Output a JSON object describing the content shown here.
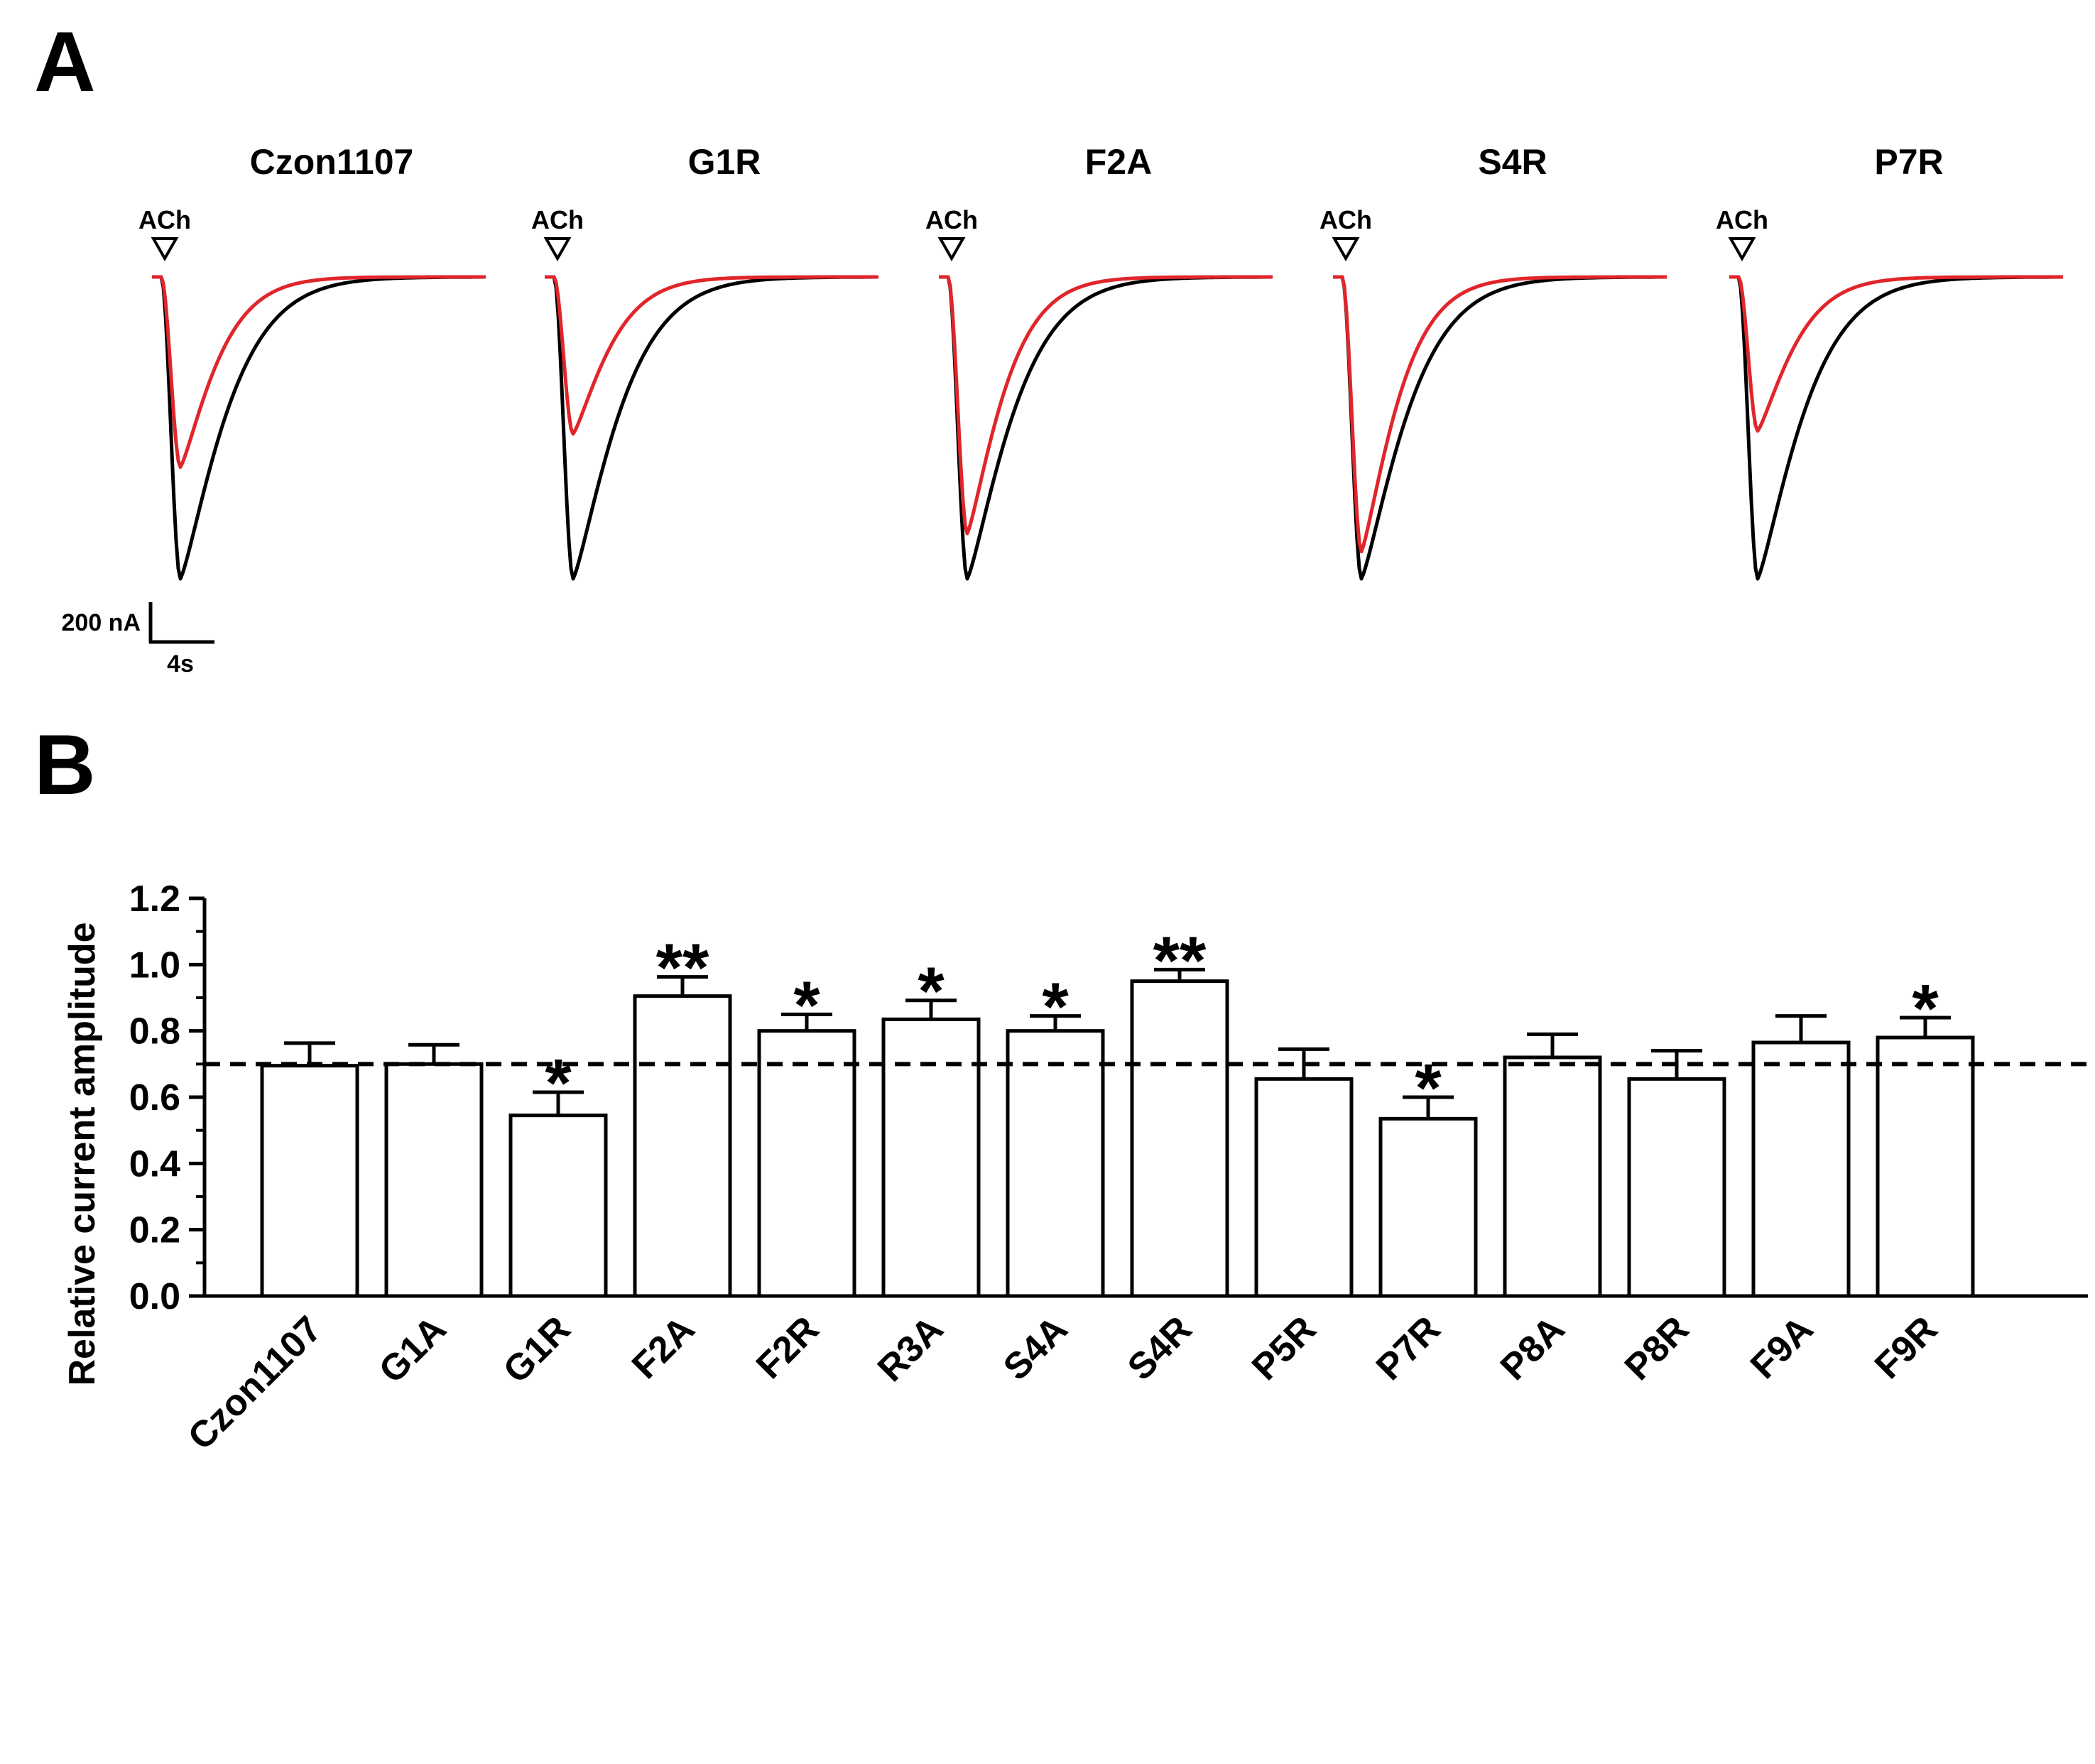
{
  "panel_a": {
    "label": "A",
    "stimulus_label": "ACh",
    "scale_bar": {
      "current_label": "200 nA",
      "time_label": "4s"
    },
    "trace_colors": {
      "control": "#000000",
      "toxin": "#e0262b"
    },
    "traces": [
      {
        "title": "Czon1107",
        "toxin_relative_peak": 0.63
      },
      {
        "title": "G1R",
        "toxin_relative_peak": 0.52
      },
      {
        "title": "F2A",
        "toxin_relative_peak": 0.85
      },
      {
        "title": "S4R",
        "toxin_relative_peak": 0.91
      },
      {
        "title": "P7R",
        "toxin_relative_peak": 0.51
      }
    ]
  },
  "panel_b": {
    "label": "B"
  },
  "chart_data": {
    "type": "bar",
    "title": "",
    "xlabel": "",
    "ylabel": "Relative current amplitude",
    "ylim": [
      0,
      1.2
    ],
    "yticks": [
      "0.0",
      "0.2",
      "0.4",
      "0.6",
      "0.8",
      "1.0",
      "1.2"
    ],
    "reference_line": 0.7,
    "categories": [
      "Czon1107",
      "G1A",
      "G1R",
      "F2A",
      "F2R",
      "R3A",
      "S4A",
      "S4R",
      "P5R",
      "P7R",
      "P8A",
      "P8R",
      "F9A",
      "F9R"
    ],
    "values": [
      0.695,
      0.7,
      0.545,
      0.905,
      0.8,
      0.835,
      0.8,
      0.95,
      0.655,
      0.535,
      0.72,
      0.655,
      0.765,
      0.78
    ],
    "errors": [
      0.068,
      0.058,
      0.07,
      0.058,
      0.05,
      0.057,
      0.045,
      0.035,
      0.09,
      0.065,
      0.07,
      0.085,
      0.08,
      0.06
    ],
    "significance": [
      "",
      "",
      "*",
      "**",
      "*",
      "*",
      "*",
      "**",
      "",
      "*",
      "",
      "",
      "",
      "*"
    ]
  }
}
